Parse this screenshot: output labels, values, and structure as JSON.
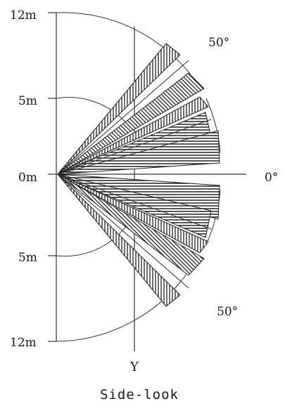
{
  "diagram": {
    "distance_labels": {
      "top_far": "12m",
      "top_near": "5m",
      "origin": "0m",
      "bottom_near": "5m",
      "bottom_far": "12m"
    },
    "angle_labels": {
      "upper": "50°",
      "center": "0°",
      "lower": "50°"
    },
    "axis_label": "Y",
    "caption": "Side-look",
    "detection_pattern": {
      "beam_angles_deg": [
        -46,
        -38,
        -28,
        -19,
        -10,
        10,
        19,
        28,
        38,
        46
      ],
      "max_angle_deg": 50
    },
    "colors": {
      "line": "#333333",
      "beam": "#222222",
      "background": "#ffffff"
    }
  }
}
